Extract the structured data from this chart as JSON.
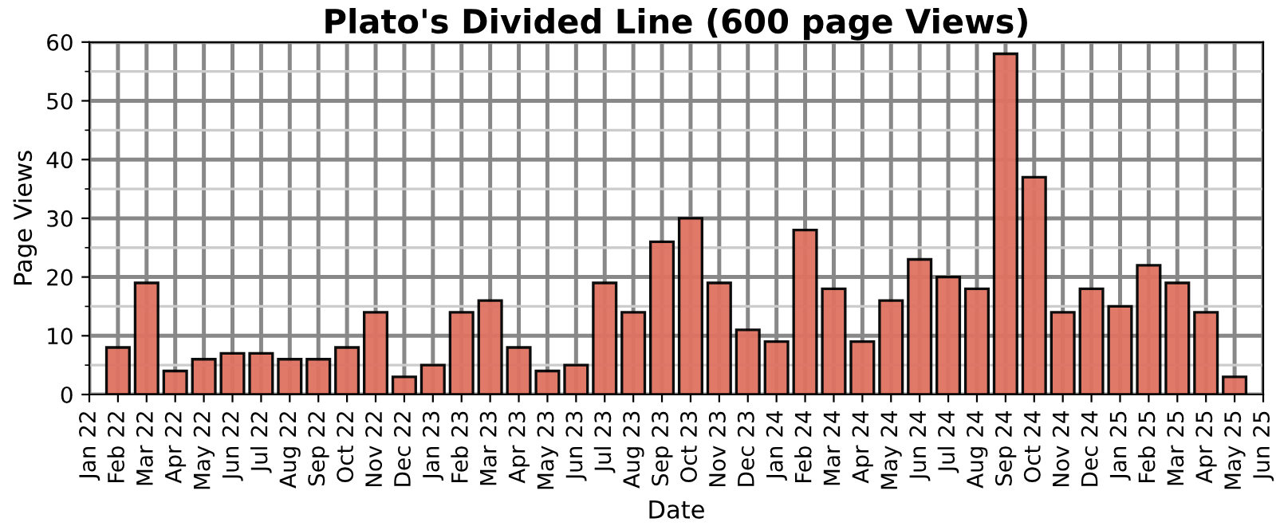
{
  "chart_data": {
    "type": "bar",
    "title": "Plato's Divided Line (600 page Views)",
    "xlabel": "Date",
    "ylabel": "Page Views",
    "categories": [
      "Jan 22",
      "Feb 22",
      "Mar 22",
      "Apr 22",
      "May 22",
      "Jun 22",
      "Jul 22",
      "Aug 22",
      "Sep 22",
      "Oct 22",
      "Nov 22",
      "Dec 22",
      "Jan 23",
      "Feb 23",
      "Mar 23",
      "Apr 23",
      "May 23",
      "Jun 23",
      "Jul 23",
      "Aug 23",
      "Sep 23",
      "Oct 23",
      "Nov 23",
      "Dec 23",
      "Jan 24",
      "Feb 24",
      "Mar 24",
      "Apr 24",
      "May 24",
      "Jun 24",
      "Jul 24",
      "Aug 24",
      "Sep 24",
      "Oct 24",
      "Nov 24",
      "Dec 24",
      "Jan 25",
      "Feb 25",
      "Mar 25",
      "Apr 25",
      "May 25",
      "Jun 25"
    ],
    "values": [
      null,
      8,
      19,
      4,
      6,
      7,
      7,
      6,
      6,
      8,
      14,
      3,
      5,
      14,
      16,
      8,
      4,
      5,
      19,
      14,
      26,
      30,
      19,
      11,
      9,
      28,
      18,
      9,
      16,
      23,
      20,
      18,
      58,
      37,
      14,
      18,
      15,
      22,
      19,
      14,
      3,
      null
    ],
    "color": "#e07262",
    "ylim": [
      0,
      60
    ],
    "yticks": [
      0,
      10,
      20,
      30,
      40,
      50,
      60
    ],
    "grid": true
  }
}
